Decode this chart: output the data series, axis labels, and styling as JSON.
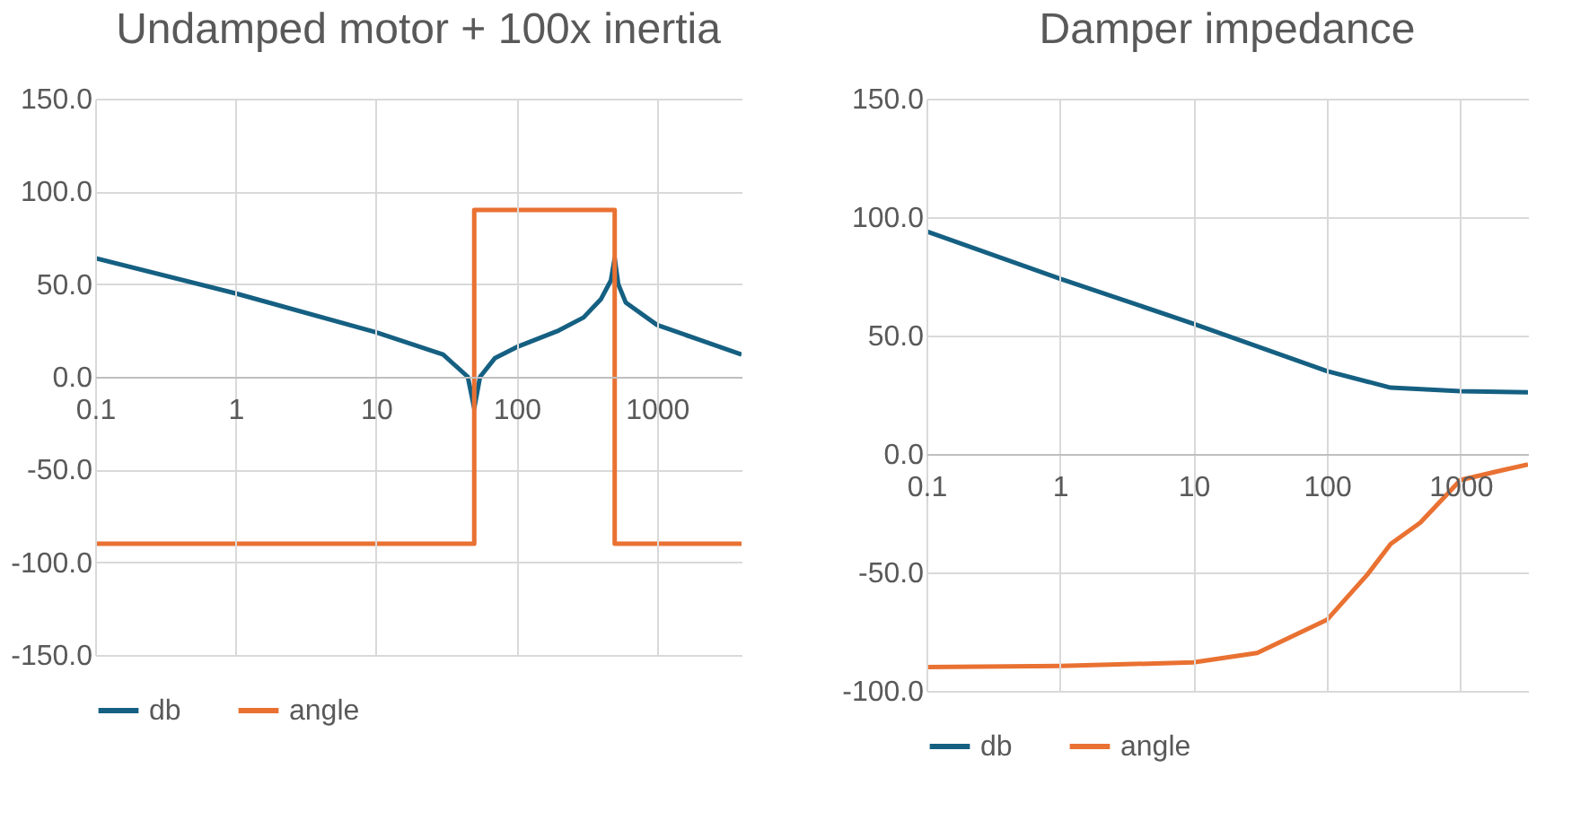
{
  "chart_data": [
    {
      "type": "line",
      "title": "Undamped motor + 100x inertia",
      "log": "x",
      "grid": true,
      "legend": "bottom",
      "xlim": [
        0.1,
        4000
      ],
      "xticks": [
        0.1,
        1,
        10,
        100,
        1000
      ],
      "ylim": [
        -150,
        150
      ],
      "yticks": [
        {
          "value": -150,
          "label": "-150.0"
        },
        {
          "value": -100,
          "label": "-100.0"
        },
        {
          "value": -50,
          "label": "-50.0"
        },
        {
          "value": 0,
          "label": "0.0"
        },
        {
          "value": 50,
          "label": "50.0"
        },
        {
          "value": 100,
          "label": "100.0"
        },
        {
          "value": 150,
          "label": "150.0"
        }
      ],
      "series": [
        {
          "name": "db",
          "color": "#156082",
          "x": [
            0.1,
            1,
            10,
            30,
            45,
            50,
            55,
            70,
            100,
            200,
            300,
            400,
            470,
            500,
            530,
            600,
            1000,
            2000,
            4000
          ],
          "values": [
            64,
            45,
            24,
            12,
            0,
            -17,
            0,
            10,
            16,
            25,
            32,
            42,
            52,
            64,
            50,
            40,
            28,
            20,
            12
          ]
        },
        {
          "name": "angle",
          "color": "#e97132",
          "x": [
            0.1,
            50,
            50,
            500,
            500,
            4000
          ],
          "values": [
            -90,
            -90,
            90,
            90,
            -90,
            -90
          ]
        }
      ]
    },
    {
      "type": "line",
      "title": "Damper impedance",
      "log": "x",
      "grid": true,
      "legend": "bottom",
      "xlim": [
        0.1,
        3200
      ],
      "xticks": [
        0.1,
        1,
        10,
        100,
        1000
      ],
      "ylim": [
        -100,
        150
      ],
      "yticks": [
        {
          "value": -100,
          "label": "-100.0"
        },
        {
          "value": -50,
          "label": "-50.0"
        },
        {
          "value": 0,
          "label": "0.0"
        },
        {
          "value": 50,
          "label": "50.0"
        },
        {
          "value": 100,
          "label": "100.0"
        },
        {
          "value": 150,
          "label": "150.0"
        }
      ],
      "series": [
        {
          "name": "db",
          "color": "#156082",
          "x": [
            0.1,
            1,
            10,
            100,
            300,
            1000,
            3200
          ],
          "values": [
            94,
            74,
            55,
            35,
            28,
            26.5,
            26
          ]
        },
        {
          "name": "angle",
          "color": "#e97132",
          "x": [
            0.1,
            1,
            10,
            30,
            100,
            200,
            300,
            500,
            1000,
            2000,
            3200
          ],
          "values": [
            -90,
            -89.5,
            -88,
            -84,
            -70,
            -51,
            -38,
            -29,
            -11,
            -7,
            -4.4
          ]
        }
      ]
    }
  ]
}
